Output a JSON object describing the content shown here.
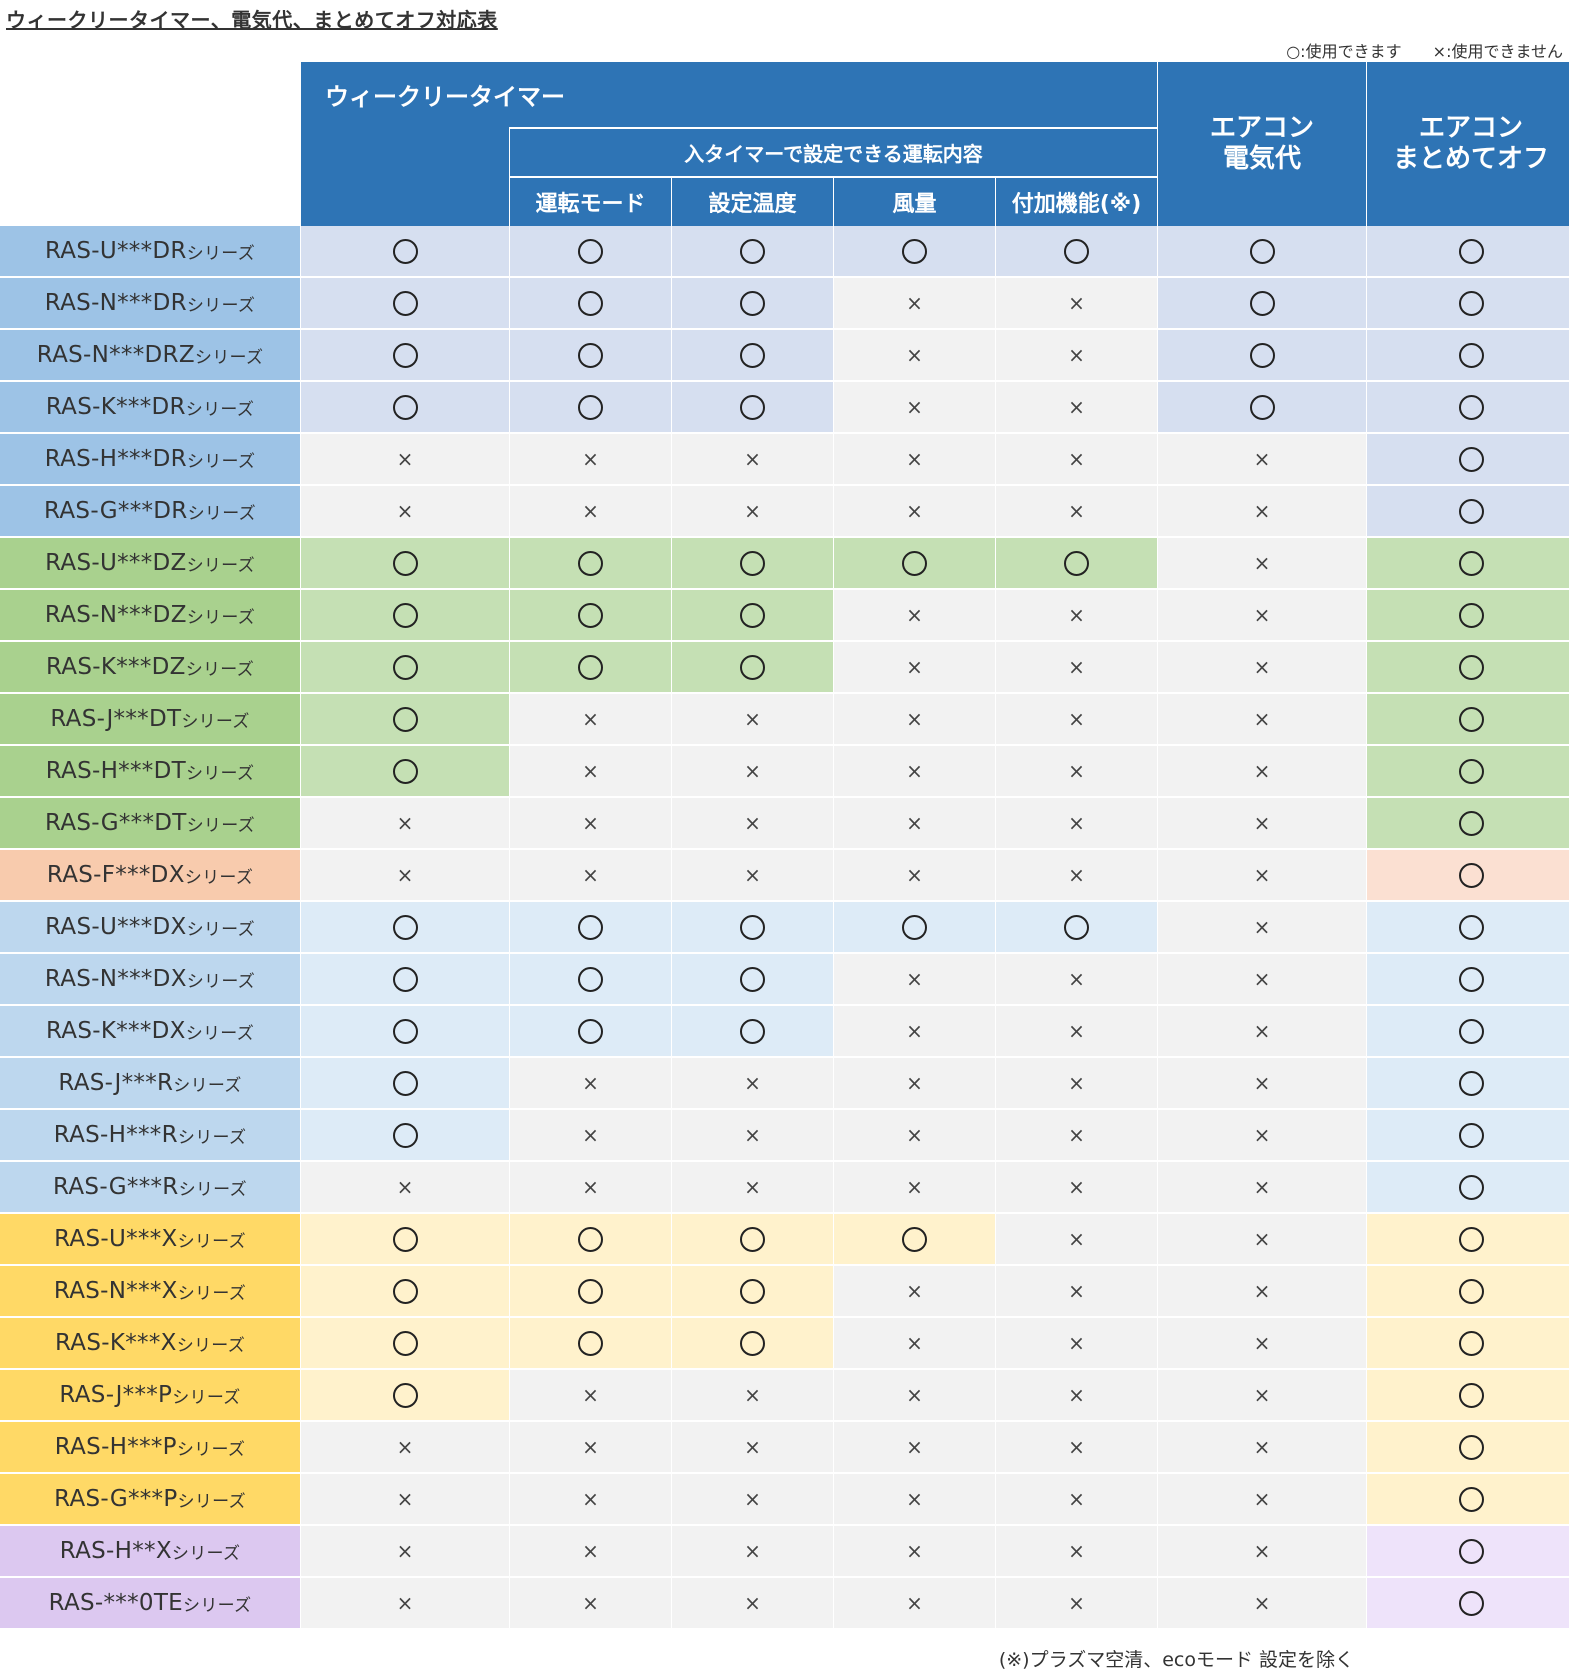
{
  "title": "ウィークリータイマー、電気代、まとめてオフ対応表",
  "legend": {
    "yes": "○:使用できます",
    "no": "×:使用できません"
  },
  "header": {
    "weekly_timer": "ウィークリータイマー",
    "timer_settings": "入タイマーで設定できる運転内容",
    "sub": [
      "運転モード",
      "設定温度",
      "風量",
      "付加機能(※)"
    ],
    "electricity": [
      "エアコン",
      "電気代"
    ],
    "batch_off": [
      "エアコン",
      "まとめてオフ"
    ]
  },
  "colors": {
    "header": "#2e74b5",
    "off": "#f2f2f2",
    "dr": {
      "label": "#9dc3e6",
      "on": "#d6dff0"
    },
    "dz": {
      "label": "#a9d18e",
      "on": "#c5e0b4"
    },
    "dx_f": {
      "label": "#f8cbad",
      "on": "#fbe0d2"
    },
    "dx": {
      "label": "#bdd7ee",
      "on": "#ddebf7"
    },
    "x": {
      "label": "#ffd966",
      "on": "#fff2cc"
    },
    "purple": {
      "label": "#dcc8f0",
      "on": "#eee3fa"
    }
  },
  "rows": [
    {
      "model": "RAS-U***DR",
      "suffix": "シリーズ",
      "group": "dr",
      "v": [
        1,
        1,
        1,
        1,
        1,
        1,
        1
      ]
    },
    {
      "model": "RAS-N***DR",
      "suffix": "シリーズ",
      "group": "dr",
      "v": [
        1,
        1,
        1,
        0,
        0,
        1,
        1
      ]
    },
    {
      "model": "RAS-N***DRZ",
      "suffix": "シリーズ",
      "group": "dr",
      "v": [
        1,
        1,
        1,
        0,
        0,
        1,
        1
      ]
    },
    {
      "model": "RAS-K***DR",
      "suffix": "シリーズ",
      "group": "dr",
      "v": [
        1,
        1,
        1,
        0,
        0,
        1,
        1
      ]
    },
    {
      "model": "RAS-H***DR",
      "suffix": "シリーズ",
      "group": "dr",
      "v": [
        0,
        0,
        0,
        0,
        0,
        0,
        1
      ]
    },
    {
      "model": "RAS-G***DR",
      "suffix": "シリーズ",
      "group": "dr",
      "v": [
        0,
        0,
        0,
        0,
        0,
        0,
        1
      ]
    },
    {
      "model": "RAS-U***DZ",
      "suffix": "シリーズ",
      "group": "dz",
      "v": [
        1,
        1,
        1,
        1,
        1,
        0,
        1
      ]
    },
    {
      "model": "RAS-N***DZ",
      "suffix": "シリーズ",
      "group": "dz",
      "v": [
        1,
        1,
        1,
        0,
        0,
        0,
        1
      ]
    },
    {
      "model": "RAS-K***DZ",
      "suffix": "シリーズ",
      "group": "dz",
      "v": [
        1,
        1,
        1,
        0,
        0,
        0,
        1
      ]
    },
    {
      "model": "RAS-J***DT",
      "suffix": "シリーズ",
      "group": "dz",
      "v": [
        1,
        0,
        0,
        0,
        0,
        0,
        1
      ]
    },
    {
      "model": "RAS-H***DT",
      "suffix": "シリーズ",
      "group": "dz",
      "v": [
        1,
        0,
        0,
        0,
        0,
        0,
        1
      ]
    },
    {
      "model": "RAS-G***DT",
      "suffix": "シリーズ",
      "group": "dz",
      "v": [
        0,
        0,
        0,
        0,
        0,
        0,
        1
      ]
    },
    {
      "model": "RAS-F***DX",
      "suffix": "シリーズ",
      "group": "dx_f",
      "v": [
        0,
        0,
        0,
        0,
        0,
        0,
        1
      ]
    },
    {
      "model": "RAS-U***DX",
      "suffix": "シリーズ",
      "group": "dx",
      "v": [
        1,
        1,
        1,
        1,
        1,
        0,
        1
      ]
    },
    {
      "model": "RAS-N***DX",
      "suffix": "シリーズ",
      "group": "dx",
      "v": [
        1,
        1,
        1,
        0,
        0,
        0,
        1
      ]
    },
    {
      "model": "RAS-K***DX",
      "suffix": "シリーズ",
      "group": "dx",
      "v": [
        1,
        1,
        1,
        0,
        0,
        0,
        1
      ]
    },
    {
      "model": "RAS-J***R",
      "suffix": "シリーズ",
      "group": "dx",
      "v": [
        1,
        0,
        0,
        0,
        0,
        0,
        1
      ]
    },
    {
      "model": "RAS-H***R",
      "suffix": "シリーズ",
      "group": "dx",
      "v": [
        1,
        0,
        0,
        0,
        0,
        0,
        1
      ]
    },
    {
      "model": "RAS-G***R",
      "suffix": "シリーズ",
      "group": "dx",
      "v": [
        0,
        0,
        0,
        0,
        0,
        0,
        1
      ]
    },
    {
      "model": "RAS-U***X",
      "suffix": "シリーズ",
      "group": "x",
      "v": [
        1,
        1,
        1,
        1,
        0,
        0,
        1
      ]
    },
    {
      "model": "RAS-N***X",
      "suffix": "シリーズ",
      "group": "x",
      "v": [
        1,
        1,
        1,
        0,
        0,
        0,
        1
      ]
    },
    {
      "model": "RAS-K***X",
      "suffix": "シリーズ",
      "group": "x",
      "v": [
        1,
        1,
        1,
        0,
        0,
        0,
        1
      ]
    },
    {
      "model": "RAS-J***P",
      "suffix": "シリーズ",
      "group": "x",
      "v": [
        1,
        0,
        0,
        0,
        0,
        0,
        1
      ]
    },
    {
      "model": "RAS-H***P",
      "suffix": "シリーズ",
      "group": "x",
      "v": [
        0,
        0,
        0,
        0,
        0,
        0,
        1
      ]
    },
    {
      "model": "RAS-G***P",
      "suffix": "シリーズ",
      "group": "x",
      "v": [
        0,
        0,
        0,
        0,
        0,
        0,
        1
      ]
    },
    {
      "model": "RAS-H**X",
      "suffix": "シリーズ",
      "group": "purple",
      "v": [
        0,
        0,
        0,
        0,
        0,
        0,
        1
      ]
    },
    {
      "model": "RAS-***0TE",
      "suffix": "シリーズ",
      "group": "purple",
      "v": [
        0,
        0,
        0,
        0,
        0,
        0,
        1
      ]
    }
  ],
  "footnote": "(※)プラズマ空清、ecoモード 設定を除く"
}
